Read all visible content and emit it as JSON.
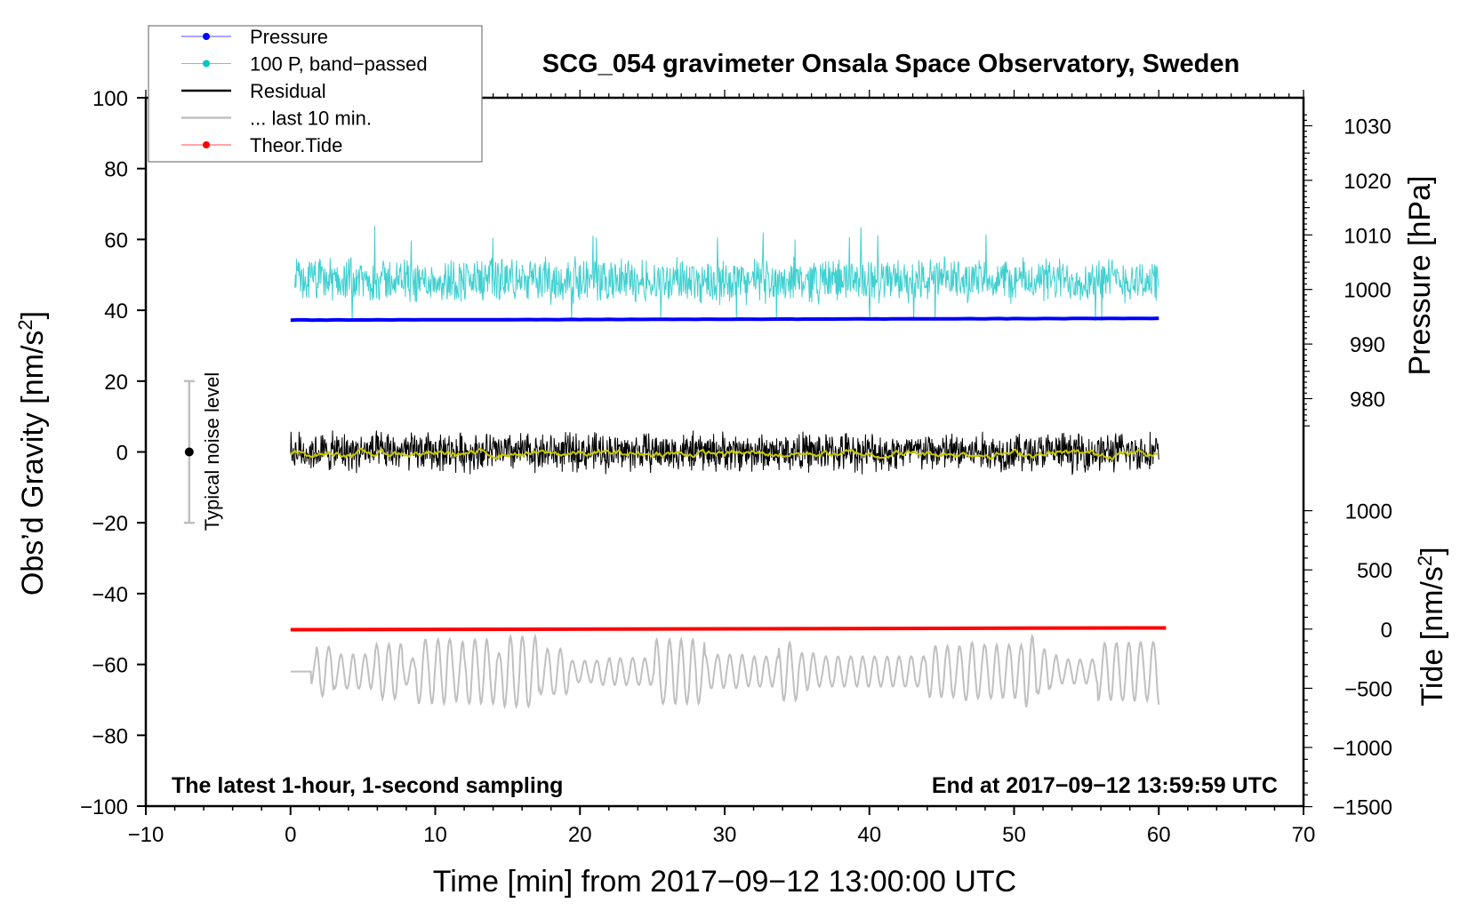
{
  "chart_data": {
    "type": "line",
    "title": "SCG_054 gravimeter Onsala Space Observatory, Sweden",
    "xlabel": "Time [min] from 2017−09−12 13:00:00 UTC",
    "ylabel": "Obs’d Gravity [nm/s",
    "ylabel_sup": "2",
    "ylabel_end": "]",
    "y2label": "Pressure [hPa]",
    "y3label": "Tide [nm/s",
    "y3label_sup": "2",
    "y3label_end": "]",
    "xlim": [
      -10,
      70
    ],
    "ylim": [
      -100,
      100
    ],
    "pressure_lim_ticks": [
      980,
      1030
    ],
    "tide_lim": [
      -1500,
      1000
    ],
    "x_ticks": [
      "−10",
      "0",
      "10",
      "20",
      "30",
      "40",
      "50",
      "60",
      "70"
    ],
    "x_tick_values": [
      -10,
      0,
      10,
      20,
      30,
      40,
      50,
      60,
      70
    ],
    "y_ticks": [
      "100",
      "80",
      "60",
      "40",
      "20",
      "0",
      "−20",
      "−40",
      "−60",
      "−80",
      "−100"
    ],
    "y_tick_values": [
      100,
      80,
      60,
      40,
      20,
      0,
      -20,
      -40,
      -60,
      -80,
      -100
    ],
    "pressure_ticks": [
      "1030",
      "1020",
      "1010",
      "1000",
      "990",
      "980"
    ],
    "pressure_tick_values": [
      1030,
      1020,
      1010,
      1000,
      990,
      980
    ],
    "tide_ticks": [
      "1000",
      "500",
      "0",
      "−500",
      "−1000",
      "−1500"
    ],
    "tide_tick_values": [
      1000,
      500,
      0,
      -500,
      -1000,
      -1500
    ],
    "annotation_left": "The latest 1-hour, 1-second sampling",
    "annotation_right": "End at 2017−09−12 13:59:59 UTC",
    "noise_label": "Typical noise level",
    "noise_bar": {
      "x": -7,
      "center": 0,
      "low": -20,
      "high": 20
    },
    "legend_position": "top-left",
    "legend": [
      {
        "label": "Pressure",
        "color": "#0000ff",
        "marker": true
      },
      {
        "label": "100 P, band−passed",
        "color": "#00c8c8",
        "marker": true
      },
      {
        "label": "Residual",
        "color": "#000000",
        "marker": false
      },
      {
        "label": "... last 10 min.",
        "color": "#c0c0c0",
        "marker": false
      },
      {
        "label": "Theor.Tide",
        "color": "#ff0000",
        "marker": true
      }
    ],
    "series": [
      {
        "name": "Pressure",
        "axis": "pressure_hPa",
        "color": "#0000ff",
        "x_range": [
          0,
          60
        ],
        "start": 994.4,
        "end": 994.7,
        "noise": 0.05
      },
      {
        "name": "100 P, band-passed",
        "axis": "gravity",
        "color": "#40d0d0",
        "x_range": [
          0,
          60
        ],
        "mean": 48.5,
        "amplitude": 6,
        "min": 37,
        "max": 67
      },
      {
        "name": "Residual",
        "axis": "gravity",
        "color": "#000000",
        "x_range": [
          0,
          60
        ],
        "mean": 0,
        "amplitude": 5,
        "min": -12,
        "max": 14
      },
      {
        "name": "Residual smoothed",
        "axis": "gravity",
        "color": "#c8c800",
        "x_range": [
          0,
          60
        ],
        "mean": -0.5,
        "amplitude": 1.5
      },
      {
        "name": "... last 10 min.",
        "axis": "gravity",
        "color": "#c0c0c0",
        "x_range": [
          0,
          60
        ],
        "mean": -62,
        "amplitude": 6,
        "min": -73,
        "max": -52
      },
      {
        "name": "Theor.Tide",
        "axis": "tide",
        "color": "#ff0000",
        "x_range": [
          0,
          60.5
        ],
        "start": -5,
        "end": 10
      }
    ]
  }
}
